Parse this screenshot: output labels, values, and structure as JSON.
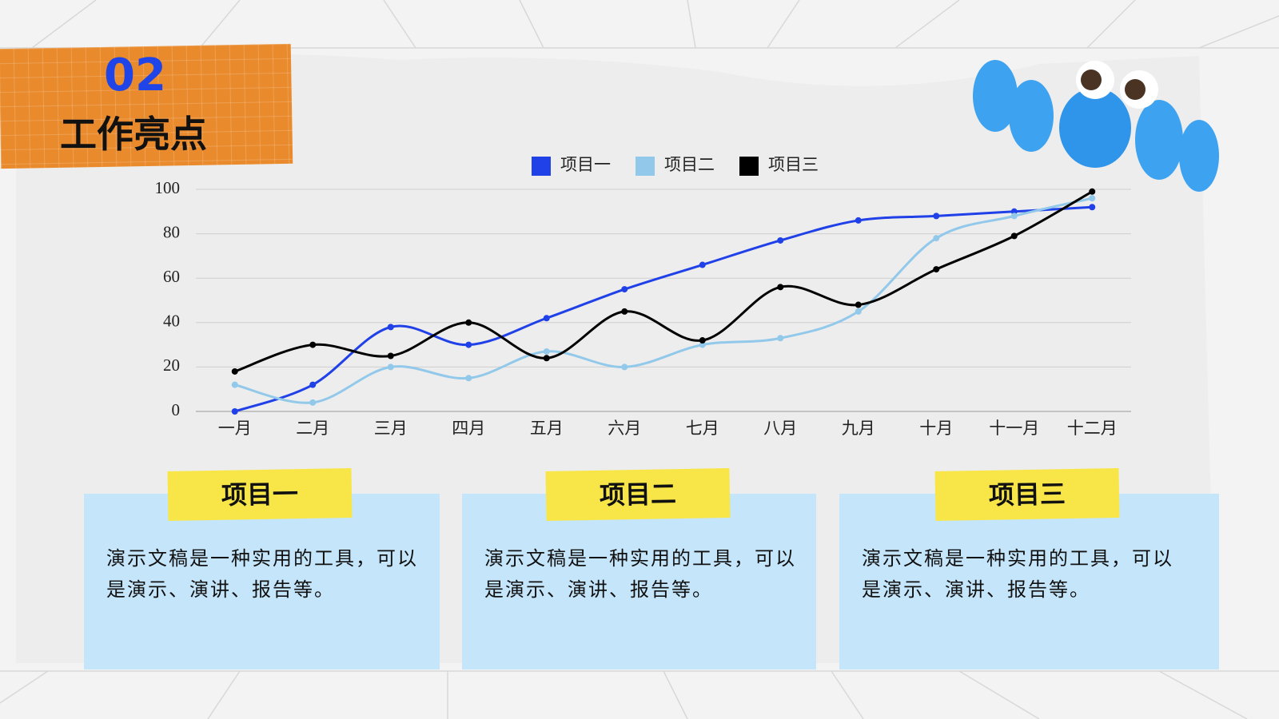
{
  "header": {
    "number": "02",
    "title": "工作亮点"
  },
  "chart_data": {
    "type": "line",
    "categories": [
      "一月",
      "二月",
      "三月",
      "四月",
      "五月",
      "六月",
      "七月",
      "八月",
      "九月",
      "十月",
      "十一月",
      "十二月"
    ],
    "series": [
      {
        "name": "项目一",
        "color": "#2040e8",
        "values": [
          0,
          12,
          38,
          30,
          42,
          55,
          66,
          77,
          86,
          88,
          90,
          92
        ]
      },
      {
        "name": "项目二",
        "color": "#92c9ea",
        "values": [
          12,
          4,
          20,
          15,
          27,
          20,
          30,
          33,
          45,
          78,
          88,
          96
        ]
      },
      {
        "name": "项目三",
        "color": "#000000",
        "values": [
          18,
          30,
          25,
          40,
          24,
          45,
          32,
          56,
          48,
          64,
          79,
          99
        ]
      }
    ],
    "ylim": [
      0,
      100
    ],
    "yticks": [
      0,
      20,
      40,
      60,
      80,
      100
    ],
    "grid": true,
    "legend": "top"
  },
  "cards": [
    {
      "title": "项目一",
      "text": "演示文稿是一种实用的工具，可以是演示、演讲、报告等。"
    },
    {
      "title": "项目二",
      "text": "演示文稿是一种实用的工具，可以是演示、演讲、报告等。"
    },
    {
      "title": "项目三",
      "text": "演示文稿是一种实用的工具，可以是演示、演讲、报告等。"
    }
  ]
}
